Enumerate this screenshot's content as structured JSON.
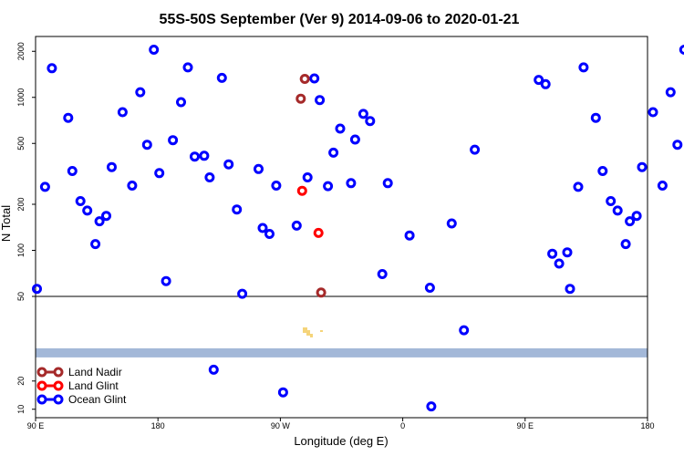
{
  "chart_data": {
    "type": "scatter",
    "title": "55S-50S September (Ver 9)   2014-09-06 to 2020-01-21",
    "xlabel": "Longitude (deg E)",
    "ylabel": "N Total",
    "x_ticks": [
      {
        "value": 90,
        "label": "90 E"
      },
      {
        "value": 180,
        "label": "180"
      },
      {
        "value": 270,
        "label": "90 W"
      },
      {
        "value": 360,
        "label": "0"
      },
      {
        "value": 450,
        "label": "90 E"
      },
      {
        "value": 540,
        "label": "180"
      }
    ],
    "xlim": [
      90,
      540
    ],
    "upper_panel": {
      "scale": "log",
      "ylim": [
        50,
        2500
      ],
      "ticks": [
        50,
        100,
        200,
        500,
        1000,
        2000
      ]
    },
    "lower_panel": {
      "scale": "linear",
      "ylim": [
        7,
        50
      ],
      "ticks": [
        10,
        20,
        50
      ]
    },
    "land_band": {
      "value": 30,
      "color": "#a3b8d8"
    },
    "legend": {
      "position": "bottom-left"
    },
    "series": [
      {
        "name": "Land Nadir",
        "color": "#a52a2a",
        "points": [
          [
            288,
            1320
          ],
          [
            285,
            980
          ],
          [
            300,
            53
          ]
        ]
      },
      {
        "name": "Land Glint",
        "color": "#ff0000",
        "points": [
          [
            286,
            245
          ],
          [
            298,
            130
          ]
        ]
      },
      {
        "name": "Ocean Glint",
        "color": "#0000ff",
        "points": [
          [
            91,
            56
          ],
          [
            97,
            260
          ],
          [
            102,
            1550
          ],
          [
            114,
            735
          ],
          [
            117,
            330
          ],
          [
            123,
            210
          ],
          [
            128,
            182
          ],
          [
            134,
            110
          ],
          [
            137,
            155
          ],
          [
            142,
            168
          ],
          [
            146,
            350
          ],
          [
            154,
            800
          ],
          [
            161,
            265
          ],
          [
            167,
            1080
          ],
          [
            172,
            490
          ],
          [
            177,
            2050
          ],
          [
            181,
            320
          ],
          [
            186,
            63
          ],
          [
            191,
            525
          ],
          [
            197,
            930
          ],
          [
            202,
            1570
          ],
          [
            207,
            410
          ],
          [
            214,
            415
          ],
          [
            218,
            300
          ],
          [
            221,
            24
          ],
          [
            227,
            1340
          ],
          [
            232,
            365
          ],
          [
            238,
            185
          ],
          [
            242,
            52
          ],
          [
            254,
            340
          ],
          [
            257,
            140
          ],
          [
            262,
            128
          ],
          [
            267,
            265
          ],
          [
            272,
            16
          ],
          [
            282,
            145
          ],
          [
            290,
            300
          ],
          [
            295,
            1330
          ],
          [
            299,
            960
          ],
          [
            305,
            263
          ],
          [
            309,
            435
          ],
          [
            314,
            625
          ],
          [
            322,
            275
          ],
          [
            325,
            530
          ],
          [
            331,
            780
          ],
          [
            336,
            700
          ],
          [
            345,
            70
          ],
          [
            349,
            275
          ],
          [
            365,
            125
          ],
          [
            380,
            57
          ],
          [
            381,
            11
          ],
          [
            396,
            150
          ],
          [
            405,
            38
          ],
          [
            413,
            455
          ],
          [
            460,
            1300
          ],
          [
            465,
            1220
          ],
          [
            470,
            95
          ],
          [
            475,
            82
          ],
          [
            481,
            97
          ],
          [
            483,
            56
          ],
          [
            489,
            260
          ],
          [
            493,
            1570
          ],
          [
            502,
            735
          ],
          [
            507,
            330
          ],
          [
            513,
            210
          ],
          [
            518,
            182
          ],
          [
            524,
            110
          ],
          [
            527,
            155
          ],
          [
            532,
            168
          ],
          [
            536,
            350
          ],
          [
            544,
            800
          ],
          [
            551,
            265
          ],
          [
            557,
            1080
          ],
          [
            562,
            490
          ],
          [
            567,
            2050
          ]
        ]
      }
    ]
  }
}
